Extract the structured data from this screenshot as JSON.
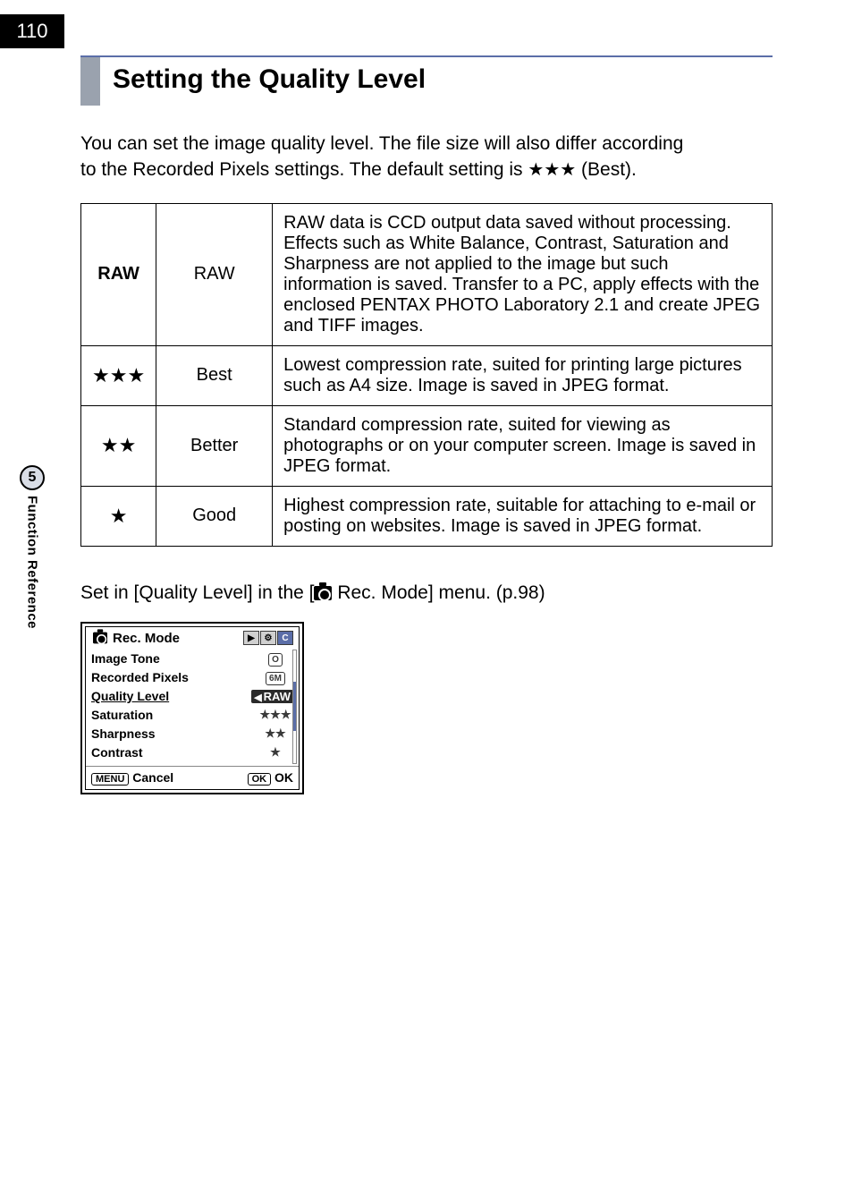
{
  "page_number": "110",
  "sidebar": {
    "chapter_number": "5",
    "chapter_label": "Function Reference"
  },
  "title": "Setting the Quality Level",
  "intro": {
    "line1": "You can set the image quality level. The file size will also differ according",
    "line2_a": "to the Recorded Pixels settings. The default setting is ",
    "stars": "★★★",
    "line2_b": " (Best)."
  },
  "table": {
    "rows": [
      {
        "symbol": "RAW",
        "symbol_bold": true,
        "name": "RAW",
        "desc": "RAW data is CCD output data saved without processing. Effects such as White Balance, Contrast, Saturation and Sharpness are not applied to the image but such information is saved. Transfer to a PC, apply effects with the enclosed PENTAX PHOTO Laboratory 2.1 and create JPEG and TIFF images."
      },
      {
        "symbol": "★★★",
        "symbol_bold": false,
        "name": "Best",
        "desc": "Lowest compression rate, suited for printing large pictures such as A4 size. Image is saved in JPEG format."
      },
      {
        "symbol": "★★",
        "symbol_bold": false,
        "name": "Better",
        "desc": "Standard compression rate, suited for viewing as photographs or on your computer screen. Image is saved in JPEG format."
      },
      {
        "symbol": "★",
        "symbol_bold": false,
        "name": "Good",
        "desc": "Highest compression rate, suitable for attaching to e-mail or posting on websites. Image is saved in JPEG format."
      }
    ]
  },
  "setin": {
    "prefix": "Set in [Quality Level] in the [",
    "suffix": " Rec. Mode] menu. (p.98)"
  },
  "lcd": {
    "header_title": "Rec. Mode",
    "tabs": [
      "▶",
      "⚙",
      "C"
    ],
    "items": [
      {
        "label": "Image Tone",
        "value_badge": "O"
      },
      {
        "label": "Recorded Pixels",
        "value_badge": "6M"
      },
      {
        "label": "Quality Level",
        "value": "RAW",
        "selected": true
      },
      {
        "label": "Saturation",
        "value": "★★★"
      },
      {
        "label": "Sharpness",
        "value": "★★"
      },
      {
        "label": "Contrast",
        "value": "★"
      }
    ],
    "footer_left_kbd": "MENU",
    "footer_left_label": "Cancel",
    "footer_right_kbd": "OK",
    "footer_right_label": "OK"
  }
}
